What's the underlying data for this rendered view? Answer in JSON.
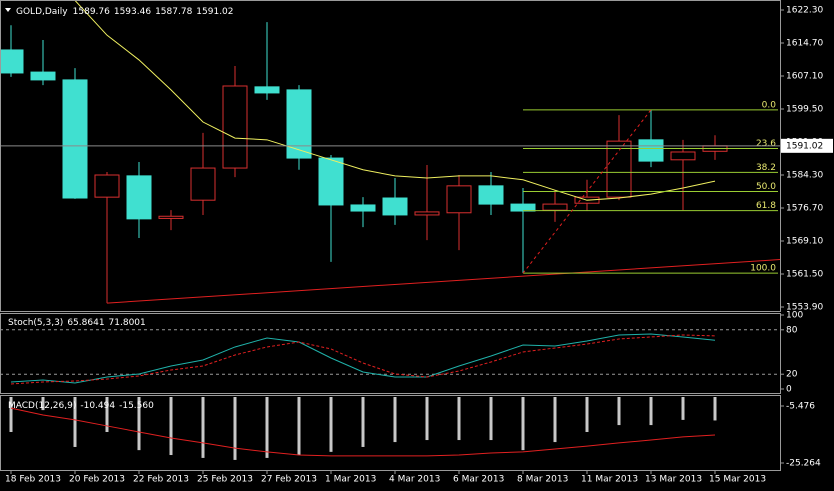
{
  "chart_data": [
    {
      "type": "candlestick",
      "title": "GOLD,Daily",
      "categories": [
        "18 Feb 2013",
        null,
        "20 Feb 2013",
        null,
        "22 Feb 2013",
        null,
        "25 Feb 2013",
        null,
        "27 Feb 2013",
        null,
        "1 Mar 2013",
        null,
        "4 Mar 2013",
        null,
        "6 Mar 2013",
        null,
        "8 Mar 2013",
        null,
        "11 Mar 2013",
        null,
        "13 Mar 2013",
        null,
        "15 Mar 2013"
      ],
      "open": [
        1613.1,
        1608.0,
        1606.2,
        1579.2,
        1584.1,
        1574.3,
        1578.5,
        1585.9,
        1604.6,
        1603.9,
        1588.2,
        1577.4,
        1579.0,
        1575.1,
        1575.6,
        1581.8,
        1577.6,
        1576.2,
        1577.8,
        1579.2,
        1592.4,
        1587.8,
        1589.76
      ],
      "high": [
        1618.8,
        1615.4,
        1608.9,
        1585.0,
        1587.3,
        1576.2,
        1594.0,
        1609.4,
        1619.5,
        1605.0,
        1588.9,
        1579.2,
        1583.6,
        1586.6,
        1584.3,
        1585.0,
        1581.3,
        1580.8,
        1583.2,
        1598.1,
        1599.3,
        1592.4,
        1593.46
      ],
      "low": [
        1606.9,
        1605.0,
        1578.8,
        1554.8,
        1569.8,
        1571.6,
        1575.1,
        1583.8,
        1601.6,
        1585.5,
        1564.3,
        1572.3,
        1572.8,
        1569.3,
        1567.0,
        1575.1,
        1561.7,
        1573.5,
        1576.0,
        1578.5,
        1586.1,
        1576.2,
        1587.78
      ],
      "close": [
        1607.8,
        1606.2,
        1579.0,
        1584.3,
        1574.2,
        1574.8,
        1585.9,
        1604.8,
        1603.2,
        1588.2,
        1577.4,
        1576.0,
        1575.1,
        1575.8,
        1581.8,
        1577.6,
        1576.0,
        1577.6,
        1579.2,
        1592.1,
        1587.5,
        1589.6,
        1591.02
      ],
      "up_color": "#d83030",
      "down_color": "#40e0d0",
      "moving_average": {
        "color": "#f0f060",
        "values": [
          null,
          null,
          1624.5,
          1616.5,
          1610.8,
          1603.9,
          1596.5,
          1592.8,
          1592.4,
          1590.1,
          1587.8,
          1585.5,
          1584.1,
          1583.6,
          1584.1,
          1584.1,
          1583.2,
          1580.8,
          1578.5,
          1579.0,
          1579.9,
          1581.3,
          1582.9
        ]
      },
      "trendline": {
        "color": "#e02020",
        "x": [
          3,
          16
        ],
        "values": [
          1554.8,
          1561.0
        ]
      },
      "fibonacci": {
        "color": "#9acd32",
        "label_color": "#e8e870",
        "connector_color": "#e02020",
        "x": [
          16,
          20
        ],
        "levels": [
          {
            "value": 0,
            "label": "0.0"
          },
          23.6,
          38.2,
          {
            "value": 50,
            "label": "50.0"
          },
          61.8,
          {
            "value": 100,
            "label": "100.0"
          }
        ],
        "prices": [
          1599.3,
          1590.4,
          1584.9,
          1580.5,
          1576.1,
          1561.7
        ]
      },
      "ylim": [
        1553.9,
        1622.3
      ],
      "yticks": [
        {
          "value": 1622.3,
          "label": "1622.30"
        },
        {
          "value": 1614.7,
          "label": "1614.70"
        },
        {
          "value": 1607.1,
          "label": "1607.10"
        },
        {
          "value": 1599.5,
          "label": "1599.50"
        },
        {
          "value": 1591.9,
          "label": "1591.90"
        },
        {
          "value": 1584.3,
          "label": "1584.30"
        },
        {
          "value": 1576.7,
          "label": "1576.70"
        },
        {
          "value": 1569.1,
          "label": "1569.10"
        },
        {
          "value": 1561.5,
          "label": "1561.50"
        },
        {
          "value": 1553.9,
          "label": "1553.90"
        }
      ],
      "grid": false
    },
    {
      "type": "line",
      "title": "Stoch(5,3,3)",
      "series": [
        {
          "color": "#20b2aa",
          "dashed": false,
          "values": [
            9.5,
            12.2,
            8.1,
            16.2,
            20.3,
            31.1,
            39.2,
            56.8,
            68.9,
            63.5,
            41.9,
            23.0,
            16.2,
            16.2,
            31.1,
            44.6,
            59.5,
            58.1,
            64.9,
            73.0,
            74.3,
            70.3,
            65.8641
          ]
        },
        {
          "color": "#e02020",
          "dashed": true,
          "values": [
            6.8,
            9.5,
            10.8,
            13.5,
            17.6,
            25.7,
            31.1,
            45.9,
            56.8,
            63.5,
            54.1,
            35.1,
            20.3,
            16.2,
            24.3,
            36.5,
            50.0,
            55.4,
            60.8,
            67.6,
            70.3,
            73.0,
            71.8001
          ]
        }
      ],
      "ylim": [
        0,
        100
      ],
      "yticks": [
        100,
        80,
        20,
        0
      ],
      "grid": true
    },
    {
      "type": "macd",
      "title": "MACD(12,26,9)",
      "histogram": {
        "color": "#c8c8c8",
        "values": [
          -14.5,
          -6.9,
          -19.7,
          -14.5,
          -20.8,
          -22.5,
          -23.5,
          -24.2,
          -23.5,
          -22.5,
          -21.4,
          -19.7,
          -18.0,
          -17.3,
          -17.3,
          -17.3,
          -20.8,
          -18.0,
          -14.5,
          -12.1,
          -12.1,
          -10.3,
          -10.494
        ]
      },
      "signal": {
        "color": "#e02020",
        "values": [
          -6.2,
          -8.6,
          -10.3,
          -12.4,
          -14.5,
          -16.6,
          -18.3,
          -20.1,
          -21.4,
          -22.5,
          -22.8,
          -22.8,
          -22.8,
          -22.8,
          -22.5,
          -21.8,
          -21.4,
          -20.4,
          -19.4,
          -18.3,
          -17.3,
          -16.2,
          -15.56
        ],
        "value_labels": [
          null,
          null,
          null,
          null,
          null,
          null,
          null,
          null,
          null,
          null,
          null,
          null,
          null,
          null,
          null,
          null,
          null,
          null,
          null,
          null,
          null,
          null,
          "-15.560"
        ]
      },
      "ylim": [
        -27.7,
        -2.35
      ],
      "yticks": [
        -5.476,
        -25.264
      ],
      "grid": false
    }
  ]
}
